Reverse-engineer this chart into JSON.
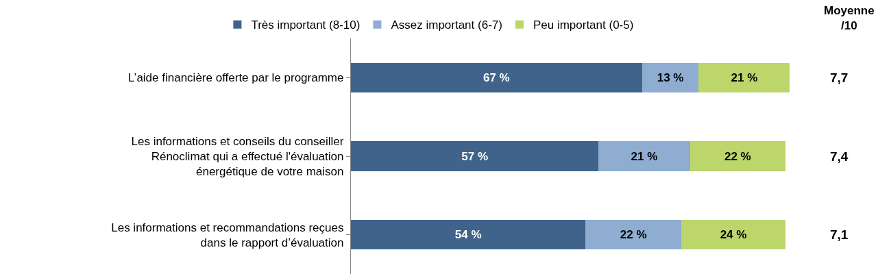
{
  "chart_data": {
    "type": "bar",
    "orientation": "horizontal",
    "stacked": true,
    "legend": "top",
    "categories": [
      "L’aide financière offerte par le programme",
      "Les informations et conseils du conseiller\nRénoclimat qui a effectué l'évaluation\nénergétique de votre maison",
      "Les informations et recommandations reçues\ndans le rapport d’évaluation"
    ],
    "series": [
      {
        "name": "Très important (8-10)",
        "color": "#3f638b",
        "values": [
          67,
          57,
          54
        ],
        "value_labels": [
          "67 %",
          "57 %",
          "54 %"
        ]
      },
      {
        "name": "Assez important (6-7)",
        "color": "#8eadd0",
        "values": [
          13,
          21,
          22
        ],
        "value_labels": [
          "13 %",
          "21 %",
          "22 %"
        ]
      },
      {
        "name": "Peu important (0-5)",
        "color": "#bcd66b",
        "values": [
          21,
          22,
          24
        ],
        "value_labels": [
          "21 %",
          "22 %",
          "24 %"
        ]
      }
    ],
    "annotations": [
      "Moyenne\n/10",
      "7,7",
      "7,4",
      "7,1"
    ]
  }
}
